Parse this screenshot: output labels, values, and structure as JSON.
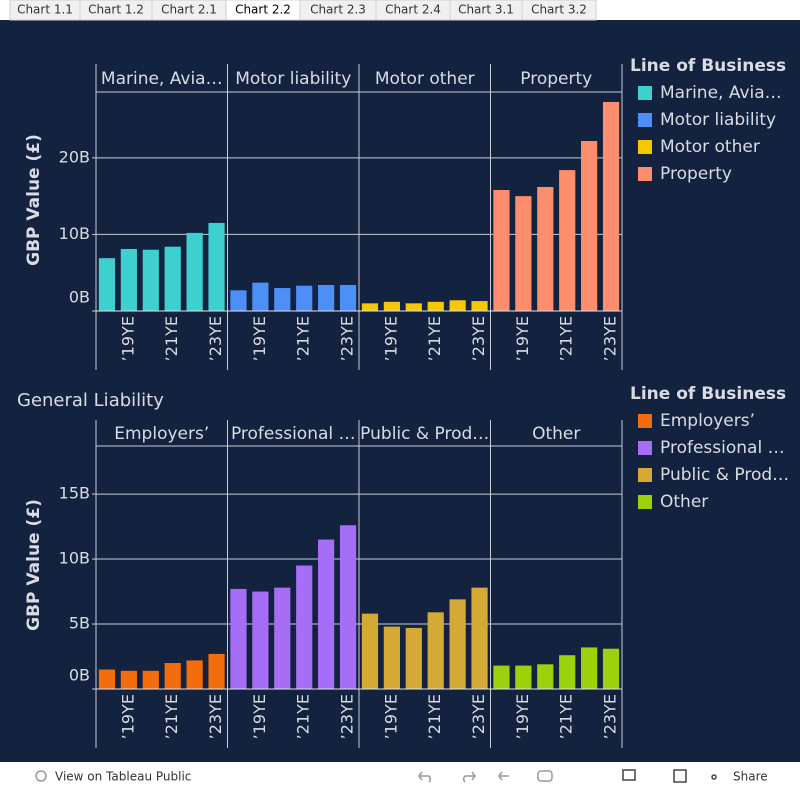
{
  "tabs": [
    "Chart 1.1",
    "Chart 1.2",
    "Chart 2.1",
    "Chart 2.2",
    "Chart 2.3",
    "Chart 2.4",
    "Chart 3.1",
    "Chart 3.2"
  ],
  "active_tab": "Chart 2.2",
  "toolbar": {
    "view_link": "View on Tableau Public",
    "share": "Share"
  },
  "chart_data": [
    {
      "type": "bar",
      "y_label": "GBP Value (£)",
      "legend_title": "Line of Business",
      "categories": [
        null,
        "’19YE",
        null,
        "’21YE",
        null,
        "’23YE"
      ],
      "series": [
        {
          "name": "Marine, Avia…",
          "color": "#3ecfcf",
          "values": [
            6.9,
            8.1,
            8.0,
            8.4,
            10.2,
            11.5
          ]
        },
        {
          "name": "Motor liability",
          "color": "#4e8ef7",
          "values": [
            2.7,
            3.7,
            3.0,
            3.3,
            3.4,
            3.4
          ]
        },
        {
          "name": "Motor other",
          "color": "#f5c800",
          "values": [
            1.0,
            1.2,
            1.0,
            1.2,
            1.4,
            1.3
          ]
        },
        {
          "name": "Property",
          "color": "#fc8d6d",
          "values": [
            15.8,
            15.0,
            16.2,
            18.4,
            22.2,
            27.3
          ]
        }
      ],
      "ylim": [
        0,
        28.6
      ],
      "yticks": [
        {
          "value": 0,
          "label": "0B"
        },
        {
          "value": 10,
          "label": "10B"
        },
        {
          "value": 20,
          "label": "20B"
        }
      ],
      "grid": true
    },
    {
      "type": "bar",
      "title": "General Liability",
      "y_label": "GBP Value (£)",
      "legend_title": "Line of Business",
      "categories": [
        null,
        "’19YE",
        null,
        "’21YE",
        null,
        "’23YE"
      ],
      "series": [
        {
          "name": "Employers’",
          "color": "#f46d0c",
          "values": [
            1.5,
            1.4,
            1.4,
            2.0,
            2.2,
            2.7
          ]
        },
        {
          "name": "Professional …",
          "color": "#a66ef6",
          "values": [
            7.7,
            7.5,
            7.8,
            9.5,
            11.5,
            12.6
          ]
        },
        {
          "name": "Public & Prod…",
          "color": "#d4a935",
          "values": [
            5.8,
            4.8,
            4.7,
            5.9,
            6.9,
            7.8
          ]
        },
        {
          "name": "Other",
          "color": "#9bd20c",
          "values": [
            1.8,
            1.8,
            1.9,
            2.6,
            3.2,
            3.1
          ]
        }
      ],
      "ylim": [
        0,
        18.7
      ],
      "yticks": [
        {
          "value": 0,
          "label": "0B"
        },
        {
          "value": 5,
          "label": "5B"
        },
        {
          "value": 10,
          "label": "10B"
        },
        {
          "value": 15,
          "label": "15B"
        }
      ],
      "grid": true
    }
  ]
}
